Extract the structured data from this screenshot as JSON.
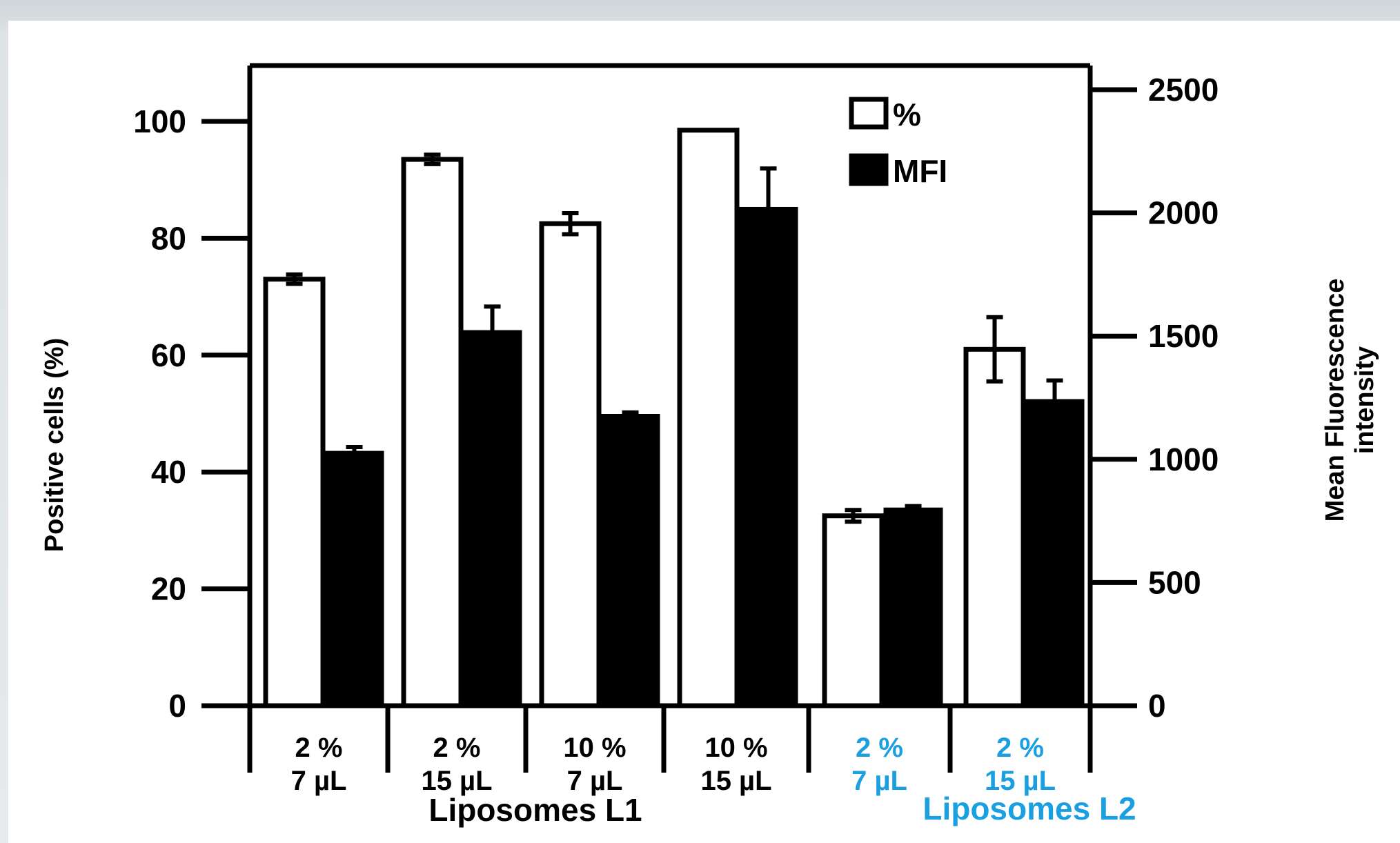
{
  "chart_data": {
    "type": "bar",
    "title": "",
    "y_left_label": "Positive cells (%)",
    "y_right_label_lines": [
      "Mean Fluorescence",
      "intensity"
    ],
    "y_left_ticks": [
      "0",
      "20",
      "40",
      "60",
      "80",
      "100"
    ],
    "y_right_ticks": [
      "0",
      "500",
      "1000",
      "1500",
      "2000",
      "2500"
    ],
    "ylim_left": [
      0,
      100
    ],
    "ylim_right": [
      0,
      2500
    ],
    "legend": {
      "position": "top-right",
      "entries": [
        {
          "label": "%",
          "fill": "#ffffff"
        },
        {
          "label": "MFI",
          "fill": "#000000"
        }
      ]
    },
    "groups": [
      {
        "name": "Liposomes L1",
        "color": "#000000"
      },
      {
        "name": "Liposomes L2",
        "color": "#1aa0e0"
      }
    ],
    "categories": [
      {
        "line1": "2 %",
        "line2": "7 µL",
        "group": 0
      },
      {
        "line1": "2 %",
        "line2": "15 µL",
        "group": 0
      },
      {
        "line1": "10 %",
        "line2": "7 µL",
        "group": 0
      },
      {
        "line1": "10 %",
        "line2": "15 µL",
        "group": 0
      },
      {
        "line1": "2 %",
        "line2": "7 µL",
        "group": 1
      },
      {
        "line1": "2 %",
        "line2": "15 µL",
        "group": 1
      }
    ],
    "series": [
      {
        "name": "%",
        "axis": "left",
        "fill": "#ffffff",
        "values": [
          73,
          93.5,
          82.5,
          98.5,
          32.5,
          61
        ],
        "errors": [
          0.8,
          0.8,
          1.8,
          0,
          1.0,
          5.5
        ]
      },
      {
        "name": "MFI",
        "axis": "right",
        "fill": "#000000",
        "values": [
          1030,
          1520,
          1180,
          2020,
          800,
          1240
        ],
        "errors": [
          20,
          100,
          10,
          160,
          10,
          80
        ]
      }
    ]
  }
}
